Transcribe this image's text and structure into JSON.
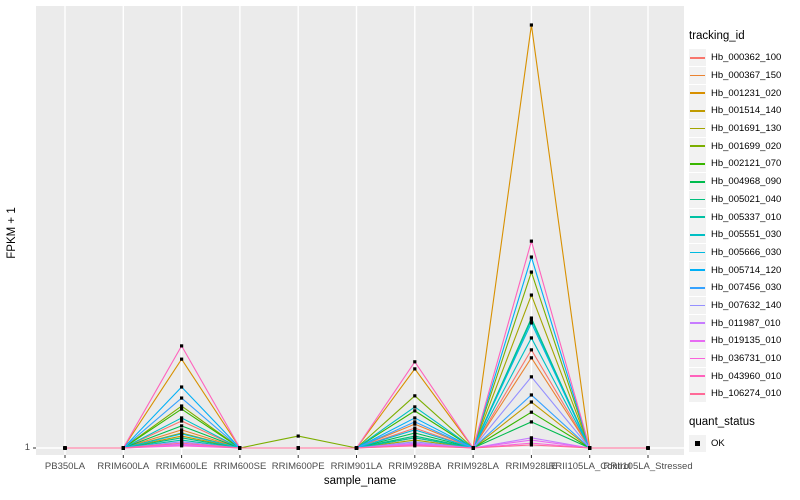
{
  "figure": {
    "background": "#FFFFFF",
    "panel_background": "#EBEBEB",
    "grid_color": "#FFFFFF",
    "point_color": "#000000",
    "axis_text_color": "#4D4D4D"
  },
  "axes": {
    "y_label": "FPKM + 1",
    "x_label": "sample_name",
    "y_ticks": [
      "1"
    ]
  },
  "legend": {
    "tracking_title": "tracking_id",
    "quant_title": "quant_status",
    "quant_items": [
      {
        "label": "OK",
        "icon": "black-square-point"
      }
    ]
  },
  "chart_data": {
    "type": "line",
    "title": "",
    "xlabel": "sample_name",
    "ylabel": "FPKM + 1",
    "y_axis_ticks": [
      "1"
    ],
    "y_units": "fraction_of_panel_height_above_baseline_FPKM_1",
    "grid": true,
    "legend_position": "right",
    "point_shape": "black-square",
    "x_categories": [
      "PB350LA",
      "RRIM600LA",
      "RRIM600LE",
      "RRIM600SE",
      "RRIM600PE",
      "RRIM901LA",
      "RRIM928BA",
      "RRIM928LA",
      "RRIM928LE",
      "RRII105LA_Control",
      "RRII105LA_Stressed"
    ],
    "series": [
      {
        "name": "Hb_000362_100",
        "color": "#F8766D",
        "values": [
          0,
          0,
          0.061,
          0,
          0,
          0,
          0.045,
          0,
          0.222,
          0,
          0
        ]
      },
      {
        "name": "Hb_000367_150",
        "color": "#EA8331",
        "values": [
          0,
          0,
          0.041,
          0,
          0,
          0,
          0.054,
          0,
          0.204,
          0,
          0
        ]
      },
      {
        "name": "Hb_001231_020",
        "color": "#D89000",
        "values": [
          0,
          0,
          0.201,
          0,
          0,
          0,
          0.179,
          0,
          0.957,
          0,
          0
        ]
      },
      {
        "name": "Hb_001514_140",
        "color": "#C09B00",
        "values": [
          0,
          0,
          0.027,
          0,
          0,
          0,
          0.023,
          0,
          0.104,
          0,
          0
        ]
      },
      {
        "name": "Hb_001691_130",
        "color": "#A3A500",
        "values": [
          0,
          0,
          0.034,
          0,
          0,
          0,
          0.018,
          0,
          0.346,
          0,
          0
        ]
      },
      {
        "name": "Hb_001699_020",
        "color": "#7CAE00",
        "values": [
          0,
          0,
          0.095,
          0,
          0.027,
          0,
          0.118,
          0,
          0.398,
          0,
          0
        ]
      },
      {
        "name": "Hb_002121_070",
        "color": "#39B600",
        "values": [
          0,
          0,
          0.088,
          0,
          0,
          0,
          0.084,
          0,
          0.081,
          0,
          0
        ]
      },
      {
        "name": "Hb_004968_090",
        "color": "#00BB4E",
        "values": [
          0,
          0,
          0.05,
          0,
          0,
          0,
          0.034,
          0,
          0.059,
          0,
          0
        ]
      },
      {
        "name": "Hb_005021_040",
        "color": "#00BF7D",
        "values": [
          0,
          0,
          0.023,
          0,
          0,
          0,
          0.027,
          0,
          0.294,
          0,
          0
        ]
      },
      {
        "name": "Hb_005337_010",
        "color": "#00C1A3",
        "values": [
          0,
          0,
          0.018,
          0,
          0,
          0,
          0.023,
          0,
          0.29,
          0,
          0
        ]
      },
      {
        "name": "Hb_005551_030",
        "color": "#00BFC4",
        "values": [
          0,
          0,
          0.068,
          0,
          0,
          0,
          0.093,
          0,
          0.249,
          0,
          0
        ]
      },
      {
        "name": "Hb_005666_030",
        "color": "#00BAE0",
        "values": [
          0,
          0,
          0.032,
          0,
          0,
          0,
          0.041,
          0,
          0.283,
          0,
          0
        ]
      },
      {
        "name": "Hb_005714_120",
        "color": "#00B0F6",
        "values": [
          0,
          0,
          0.138,
          0,
          0,
          0,
          0.068,
          0,
          0.432,
          0,
          0
        ]
      },
      {
        "name": "Hb_007456_030",
        "color": "#35A2FF",
        "values": [
          0,
          0,
          0.113,
          0,
          0,
          0,
          0.059,
          0,
          0.12,
          0,
          0
        ]
      },
      {
        "name": "Hb_007632_140",
        "color": "#9590FF",
        "values": [
          0,
          0,
          0.014,
          0,
          0,
          0,
          0.014,
          0,
          0.161,
          0,
          0
        ]
      },
      {
        "name": "Hb_011987_010",
        "color": "#C77CFF",
        "values": [
          0,
          0,
          0.009,
          0,
          0,
          0,
          0.011,
          0,
          0.023,
          0,
          0
        ]
      },
      {
        "name": "Hb_019135_010",
        "color": "#E76BF3",
        "values": [
          0,
          0,
          0.007,
          0,
          0,
          0,
          0.009,
          0,
          0.018,
          0,
          0
        ]
      },
      {
        "name": "Hb_036731_010",
        "color": "#FA62DB",
        "values": [
          0,
          0,
          0.005,
          0,
          0,
          0,
          0.007,
          0,
          0.011,
          0,
          0
        ]
      },
      {
        "name": "Hb_043960_010",
        "color": "#FF62BC",
        "values": [
          0,
          0,
          0.231,
          0,
          0,
          0,
          0.195,
          0,
          0.468,
          0,
          0
        ]
      },
      {
        "name": "Hb_106274_010",
        "color": "#FF6A98",
        "values": [
          0,
          0,
          0.011,
          0,
          0,
          0,
          0.005,
          0,
          0.007,
          0,
          0
        ]
      }
    ]
  }
}
